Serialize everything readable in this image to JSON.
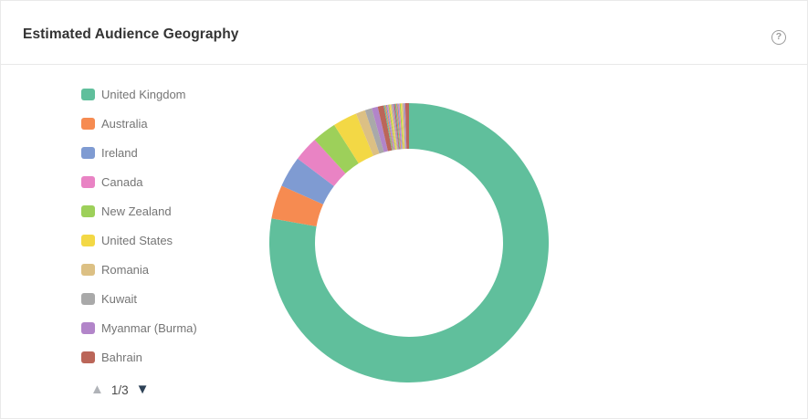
{
  "header": {
    "title": "Estimated Audience Geography",
    "help_icon": "?"
  },
  "legend_pager": {
    "prev_icon": "▲",
    "indicator": "1/3",
    "next_icon": "▼"
  },
  "colors": {
    "card_border": "#e9e9e9",
    "divider": "#e8e8e8",
    "title_text": "#333333",
    "legend_text": "#757575",
    "pager_prev_arrow": "#b0b3b8",
    "pager_next_arrow": "#2e4257",
    "help_icon": "#9b9b9b"
  },
  "chart_data": {
    "type": "pie",
    "subtype": "donut",
    "title": "Estimated Audience Geography",
    "units": "percent",
    "legend_position": "left",
    "layout": {
      "start_angle_deg": 90,
      "clockwise": true,
      "inner_radius_ratio": 0.67,
      "outer_radius_px": 153
    },
    "palette": [
      "#60BF9C",
      "#F68B51",
      "#7F9BD2",
      "#E983C4",
      "#9DD05A",
      "#F3D845",
      "#DCC084",
      "#A9A9A9",
      "#B285C9",
      "#BB6659"
    ],
    "series": [
      {
        "name": "United Kingdom",
        "value": 77.8
      },
      {
        "name": "Australia",
        "value": 3.9
      },
      {
        "name": "Ireland",
        "value": 3.6
      },
      {
        "name": "Canada",
        "value": 2.9
      },
      {
        "name": "New Zealand",
        "value": 2.8
      },
      {
        "name": "United States",
        "value": 2.8
      },
      {
        "name": "Romania",
        "value": 1.1
      },
      {
        "name": "Kuwait",
        "value": 0.8
      },
      {
        "name": "Myanmar (Burma)",
        "value": 0.7
      },
      {
        "name": "Bahrain",
        "value": 0.7
      }
    ],
    "unlabeled_slices": [
      0.13,
      0.13,
      0.13,
      0.13,
      0.13,
      0.13,
      0.13,
      0.13,
      0.13,
      0.13,
      0.13,
      0.13,
      0.13,
      0.13,
      0.13,
      0.13,
      0.13,
      0.13,
      0.13,
      0.43
    ]
  }
}
